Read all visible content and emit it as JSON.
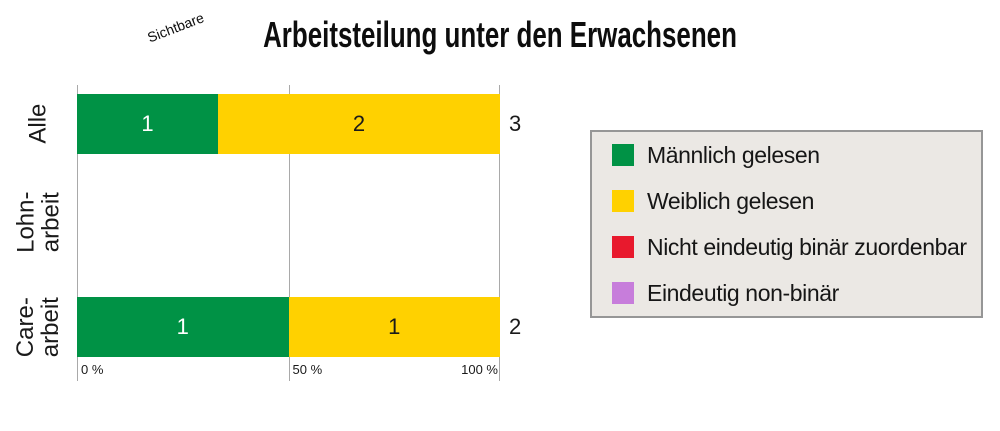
{
  "header": {
    "prefix": "Sichtbare",
    "title": "Arbeitsteilung unter den Erwachsenen"
  },
  "colors": {
    "background": "#ffffff",
    "gridline": "#a9a9a9",
    "legend_background": "#ebe8e4",
    "legend_border": "#969696"
  },
  "chart_data": {
    "type": "bar",
    "orientation": "horizontal",
    "stacked": true,
    "normalized_percent": true,
    "title": "Arbeitsteilung unter den Erwachsenen",
    "title_prefix_rotated": "Sichtbare",
    "categories": [
      "Alle",
      "Lohn-\narbeit",
      "Care-\narbeit"
    ],
    "series": [
      {
        "name": "Männlich gelesen",
        "color": "#009245",
        "label_color": "#ffffff",
        "values": [
          1,
          0,
          1
        ]
      },
      {
        "name": "Weiblich gelesen",
        "color": "#ffd100",
        "label_color": "#1a1a1a",
        "values": [
          2,
          0,
          1
        ]
      },
      {
        "name": "Nicht eindeutig binär zuordenbar",
        "color": "#e8192d",
        "label_color": "#ffffff",
        "values": [
          0,
          0,
          0
        ]
      },
      {
        "name": "Eindeutig non-binär",
        "color": "#c77ddb",
        "label_color": "#1a1a1a",
        "values": [
          0,
          0,
          0
        ]
      }
    ],
    "row_totals": [
      3,
      null,
      2
    ],
    "x_axis": {
      "ticks": [
        "0 %",
        "50 %",
        "100 %"
      ],
      "min": 0,
      "max": 100,
      "unit": "%"
    },
    "grid": "vertical",
    "legend_position": "right"
  }
}
